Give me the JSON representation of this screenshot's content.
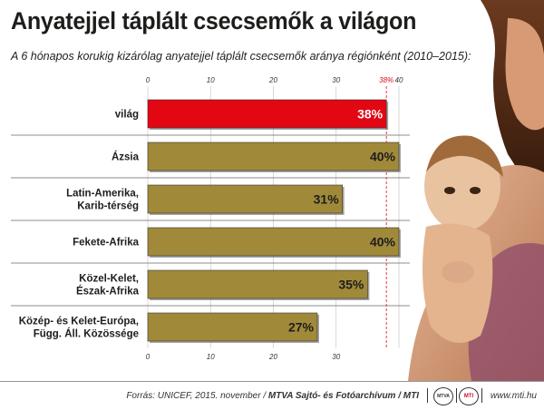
{
  "title": "Anyatejjel táplált csecsemők a világon",
  "subtitle": "A 6 hónapos korukig kizárólag anyatejjel táplált csecsemők aránya régiónként (2010–2015):",
  "chart_data": {
    "type": "bar",
    "orientation": "horizontal",
    "categories": [
      [
        "világ"
      ],
      [
        "Ázsia"
      ],
      [
        "Latin-Amerika,",
        "Karib-térség"
      ],
      [
        "Fekete-Afrika"
      ],
      [
        "Közel-Kelet,",
        "Észak-Afrika"
      ],
      [
        "Közép- és Kelet-Európa,",
        "Függ. Áll. Közössége"
      ]
    ],
    "values": [
      38,
      40,
      31,
      40,
      35,
      27
    ],
    "value_labels": [
      "38%",
      "40%",
      "31%",
      "40%",
      "35%",
      "27%"
    ],
    "highlight_index": 0,
    "highlight_color": "#e30613",
    "bar_color": "#a08a3a",
    "xlim": [
      0,
      40
    ],
    "top_ticks": [
      "0",
      "10",
      "20",
      "30",
      "38%",
      "40"
    ],
    "top_tick_values": [
      0,
      10,
      20,
      30,
      38,
      40
    ],
    "bottom_ticks": [
      "0",
      "10",
      "20",
      "30"
    ],
    "bottom_tick_values": [
      0,
      10,
      20,
      30
    ],
    "reference_value": 38,
    "grid": true
  },
  "footer": {
    "source_prefix": "Forrás: UNICEF, 2015. november / ",
    "source_bold": "MTVA Sajtó- és Fotóarchívum / MTI",
    "logo1": "MTVA",
    "logo2": "MTI",
    "website": "www.mti.hu"
  }
}
